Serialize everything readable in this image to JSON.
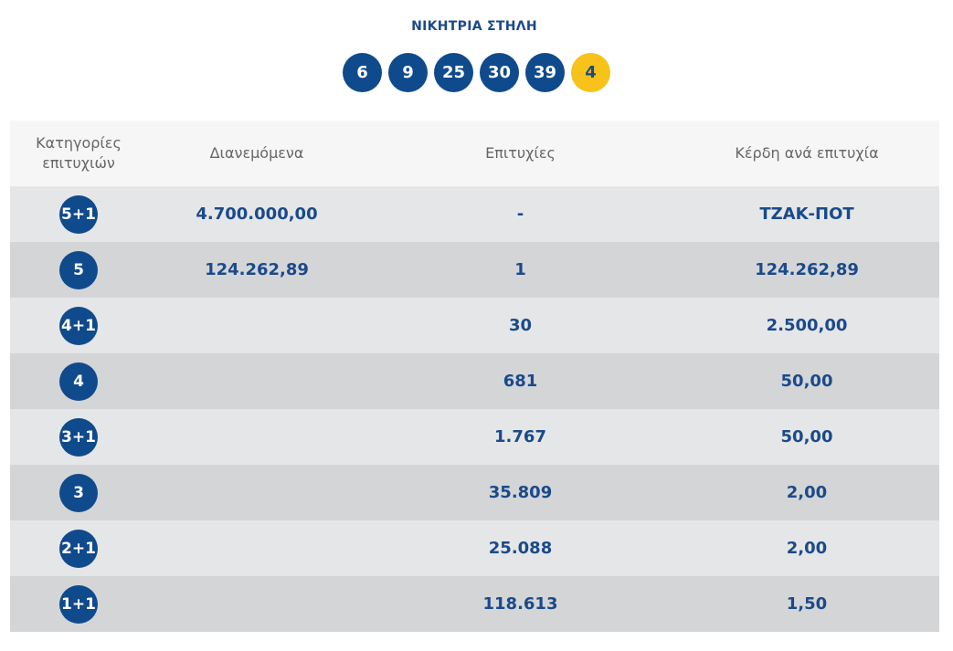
{
  "title": "ΝΙΚΗΤΡΙΑ ΣΤΗΛΗ",
  "numbers": [
    "6",
    "9",
    "25",
    "30",
    "39"
  ],
  "bonus": "4",
  "headers": {
    "category_line1": "Κατηγορίες",
    "category_line2": "επιτυχιών",
    "distributed": "Διανεμόμενα",
    "winners": "Επιτυχίες",
    "prize": "Κέρδη ανά επιτυχία"
  },
  "rows": [
    {
      "category": "5+1",
      "distributed": "4.700.000,00",
      "winners": "-",
      "prize": "ΤΖΑΚ-ΠΟΤ"
    },
    {
      "category": "5",
      "distributed": "124.262,89",
      "winners": "1",
      "prize": "124.262,89"
    },
    {
      "category": "4+1",
      "distributed": "",
      "winners": "30",
      "prize": "2.500,00"
    },
    {
      "category": "4",
      "distributed": "",
      "winners": "681",
      "prize": "50,00"
    },
    {
      "category": "3+1",
      "distributed": "",
      "winners": "1.767",
      "prize": "50,00"
    },
    {
      "category": "3",
      "distributed": "",
      "winners": "35.809",
      "prize": "2,00"
    },
    {
      "category": "2+1",
      "distributed": "",
      "winners": "25.088",
      "prize": "2,00"
    },
    {
      "category": "1+1",
      "distributed": "",
      "winners": "118.613",
      "prize": "1,50"
    }
  ],
  "colors": {
    "ball": "#0f4a8c",
    "bonus_ball": "#f7c31b",
    "text_accent": "#1a4a8a"
  }
}
